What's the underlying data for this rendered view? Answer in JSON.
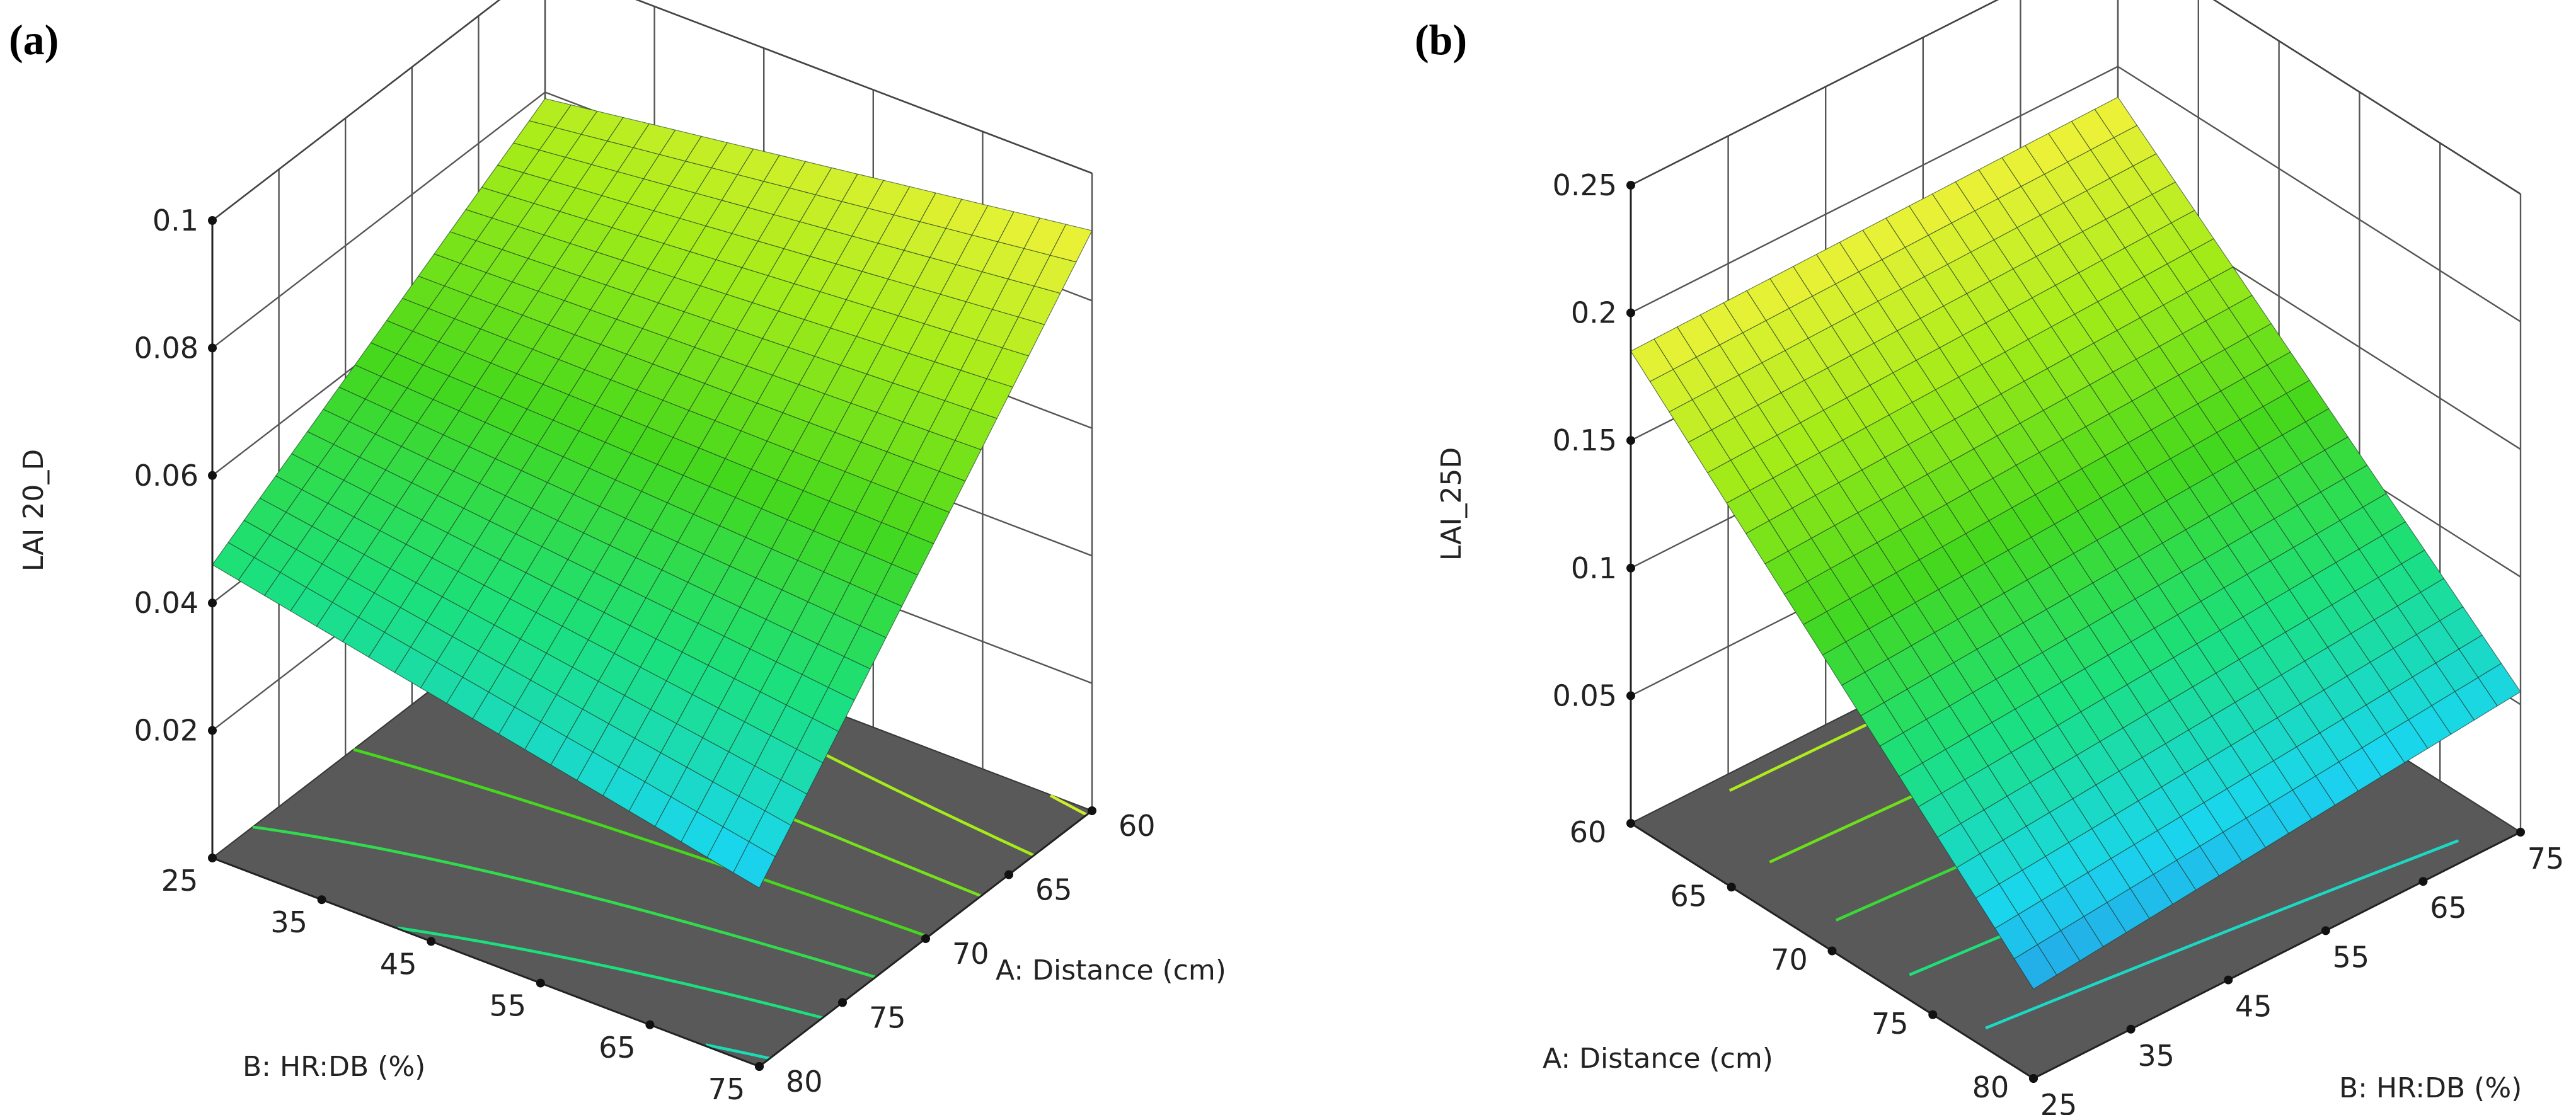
{
  "figure": {
    "panels": [
      {
        "id": "a",
        "label": "(a)"
      },
      {
        "id": "b",
        "label": "(b)"
      }
    ]
  },
  "chart_data": [
    {
      "panel": "(a)",
      "type": "surface3d",
      "title": "",
      "zlabel": "LAI 20_D",
      "zticks": [
        "0.02",
        "0.04",
        "0.06",
        "0.08",
        "0.1"
      ],
      "zlim": [
        0,
        0.1
      ],
      "xlabel": "A: Distance (cm)",
      "xticks": [
        "60",
        "65",
        "70",
        "75",
        "80"
      ],
      "xlim": [
        60,
        80
      ],
      "ylabel": "B: HR:DB (%)",
      "yticks": [
        "25",
        "35",
        "45",
        "55",
        "65",
        "75"
      ],
      "ylim": [
        25,
        75
      ],
      "corners": [
        {
          "A": 60,
          "B": 25,
          "value": 0.079
        },
        {
          "A": 60,
          "B": 75,
          "value": 0.091
        },
        {
          "A": 80,
          "B": 25,
          "value": 0.046
        },
        {
          "A": 80,
          "B": 75,
          "value": 0.028
        }
      ],
      "contour_values": [
        0.03,
        0.04,
        0.05,
        0.06,
        0.07,
        0.08,
        0.09
      ],
      "colormap": [
        "#2f78e0",
        "#1ad6ee",
        "#1be07c",
        "#45d81c",
        "#a6ec19",
        "#f2f23a"
      ]
    },
    {
      "panel": "(b)",
      "type": "surface3d",
      "title": "",
      "zlabel": "LAI_25D",
      "zticks": [
        "0.05",
        "0.1",
        "0.15",
        "0.2",
        "0.25"
      ],
      "zlim": [
        0,
        0.25
      ],
      "xlabel": "A: Distance (cm)",
      "xticks": [
        "60",
        "65",
        "70",
        "75",
        "80"
      ],
      "xlim": [
        60,
        80
      ],
      "ylabel": "B: HR:DB (%)",
      "yticks": [
        "25",
        "35",
        "45",
        "55",
        "65",
        "75"
      ],
      "ylim": [
        25,
        75
      ],
      "corners": [
        {
          "A": 60,
          "B": 25,
          "value": 0.185
        },
        {
          "A": 60,
          "B": 75,
          "value": 0.188
        },
        {
          "A": 80,
          "B": 25,
          "value": 0.035
        },
        {
          "A": 80,
          "B": 75,
          "value": 0.055
        }
      ],
      "contour_values": [
        0.06,
        0.09,
        0.12,
        0.15,
        0.18
      ],
      "colormap": [
        "#2f78e0",
        "#1ad6ee",
        "#1be07c",
        "#45d81c",
        "#a6ec19",
        "#f2f23a"
      ]
    }
  ]
}
